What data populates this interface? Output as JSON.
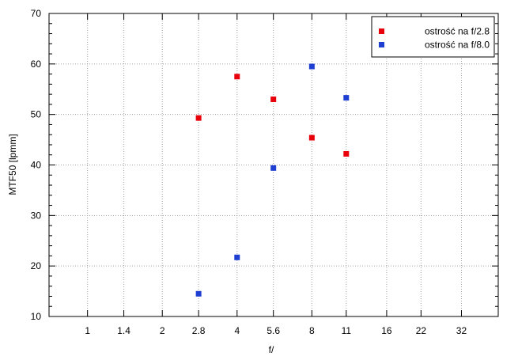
{
  "chart_data": {
    "type": "scatter",
    "title": "",
    "xlabel": "f/",
    "ylabel": "MTF50 [lpmm]",
    "x_scale": "log",
    "x_ticks": [
      "1",
      "1.4",
      "2",
      "2.8",
      "4",
      "5.6",
      "8",
      "11",
      "16",
      "22",
      "32"
    ],
    "x_tick_values": [
      1,
      1.4,
      2,
      2.8,
      4,
      5.6,
      8,
      11,
      16,
      22,
      32
    ],
    "xlim": [
      0.7,
      45
    ],
    "ylim": [
      10,
      70
    ],
    "y_ticks": [
      10,
      20,
      30,
      40,
      50,
      60,
      70
    ],
    "grid": true,
    "legend_position": "top-right",
    "series": [
      {
        "name": "ostrość na f/2.8",
        "color": "#e8000b",
        "points": [
          {
            "x": 2.8,
            "y": 49.3
          },
          {
            "x": 4,
            "y": 57.5
          },
          {
            "x": 5.6,
            "y": 53.0
          },
          {
            "x": 8,
            "y": 45.4
          },
          {
            "x": 11,
            "y": 42.2
          }
        ]
      },
      {
        "name": "ostrość na f/8.0",
        "color": "#1f3fd2",
        "points": [
          {
            "x": 2.8,
            "y": 14.5
          },
          {
            "x": 4,
            "y": 21.7
          },
          {
            "x": 5.6,
            "y": 39.4
          },
          {
            "x": 8,
            "y": 59.5
          },
          {
            "x": 11,
            "y": 53.3
          }
        ]
      }
    ]
  }
}
